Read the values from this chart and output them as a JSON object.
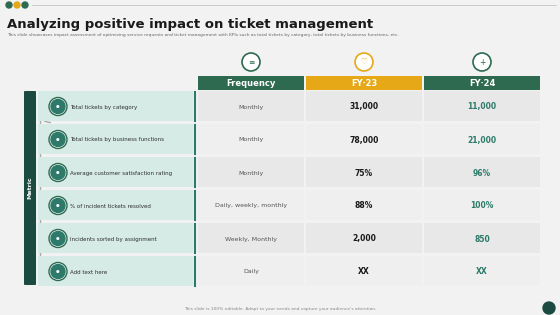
{
  "title": "Analyzing positive impact on ticket management",
  "subtitle": "This slide showcases impact assessment of optimizing service requests and ticket management with KPIs such as total tickets by category, total tickets by business functions, etc.",
  "footer": "This slide is 100% editable. Adapt to your needs and capture your audience's attention.",
  "bg_color": "#f2f2f2",
  "header_green": "#2d6a4f",
  "header_gold": "#e6a817",
  "teal_color": "#2d7a6a",
  "icon_border": "#2d6a4f",
  "metric_bg": "#d6eae6",
  "cell_bg": "#e8e8e8",
  "cell_bg_alt": "#efefef",
  "sidebar_color": "#1a4a40",
  "col_headers": [
    "Frequency",
    "FY‧23",
    "FY‧24"
  ],
  "rows": [
    {
      "metric": "Total tickets by category",
      "frequency": "Monthly",
      "fy23": "31,000",
      "fy24": "11,000"
    },
    {
      "metric": "Total tickets by business functions",
      "frequency": "Monthly",
      "fy23": "78,000",
      "fy24": "21,000"
    },
    {
      "metric": "Average customer satisfaction rating",
      "frequency": "Monthly",
      "fy23": "75%",
      "fy24": "96%"
    },
    {
      "metric": "% of incident tickets resolved",
      "frequency": "Daily, weekly, monthly",
      "fy23": "88%",
      "fy24": "100%"
    },
    {
      "metric": "Incidents sorted by assignment",
      "frequency": "Weekly, Monthly",
      "fy23": "2,000",
      "fy24": "850"
    },
    {
      "metric": "Add text here",
      "frequency": "Daily",
      "fy23": "XX",
      "fy24": "XX"
    }
  ],
  "dots": [
    "#2d6a4f",
    "#2d6a4f",
    "#2d6a4f"
  ],
  "dot_gold": "#e6a817",
  "fy23_val_color": "#1a1a1a",
  "fy24_val_color": "#2d7a6a",
  "freq_color": "#555555",
  "metric_color": "#2d3030",
  "title_color": "#1a1a1a",
  "subtitle_color": "#666666",
  "footer_color": "#888888"
}
